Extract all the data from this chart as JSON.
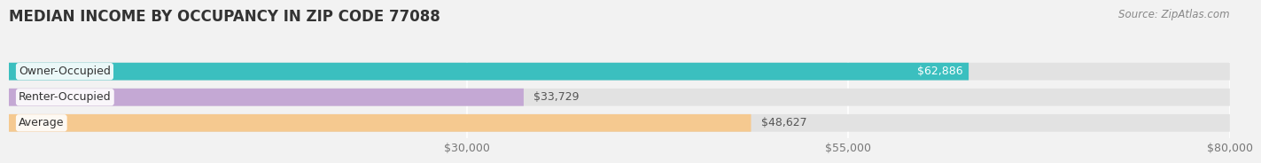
{
  "title": "MEDIAN INCOME BY OCCUPANCY IN ZIP CODE 77088",
  "source": "Source: ZipAtlas.com",
  "categories": [
    "Owner-Occupied",
    "Renter-Occupied",
    "Average"
  ],
  "values": [
    62886,
    33729,
    48627
  ],
  "bar_colors": [
    "#3bbfbf",
    "#c4a8d4",
    "#f5c990"
  ],
  "bar_labels": [
    "$62,886",
    "$33,729",
    "$48,627"
  ],
  "value_label_inside": [
    true,
    false,
    false
  ],
  "value_label_color_inside": "#ffffff",
  "value_label_color_outside": "#555555",
  "xlim_min": 0,
  "xlim_max": 80000,
  "xticks": [
    30000,
    55000,
    80000
  ],
  "xtick_labels": [
    "$30,000",
    "$55,000",
    "$80,000"
  ],
  "background_color": "#f2f2f2",
  "bar_bg_color": "#e2e2e2",
  "title_fontsize": 12,
  "label_fontsize": 9,
  "tick_fontsize": 9,
  "source_fontsize": 8.5
}
